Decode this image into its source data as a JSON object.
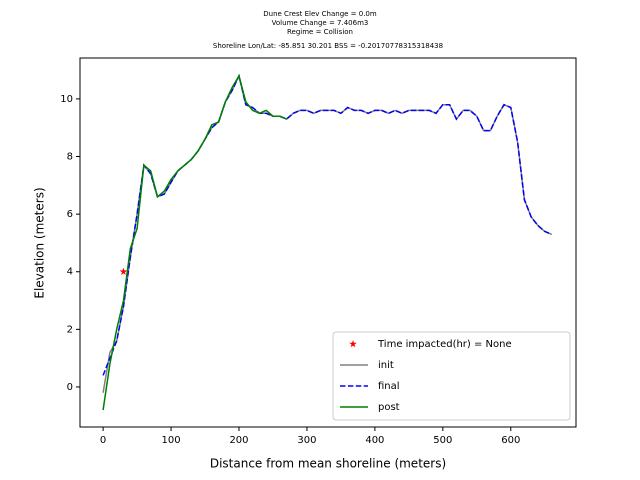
{
  "chart_data": {
    "type": "line",
    "title": [
      "Dune Crest Elev Change = 0.0m",
      "Volume Change = 7.406m3",
      "Regime = Collision",
      "Shoreline Lon/Lat: -85.851 30.201    BSS = -0.20170778315318438"
    ],
    "xlabel": "Distance from mean shoreline (meters)",
    "ylabel": "Elevation (meters)",
    "x": [
      0,
      10,
      20,
      30,
      40,
      50,
      60,
      70,
      80,
      90,
      100,
      110,
      120,
      130,
      140,
      150,
      160,
      170,
      180,
      190,
      200,
      210,
      220,
      230,
      240,
      250,
      260,
      270,
      280,
      290,
      300,
      310,
      320,
      330,
      340,
      350,
      360,
      370,
      380,
      390,
      400,
      410,
      420,
      430,
      440,
      450,
      460,
      470,
      480,
      490,
      500,
      510,
      520,
      530,
      540,
      550,
      560,
      570,
      580,
      590,
      600,
      610,
      620,
      630,
      640,
      650,
      660
    ],
    "series": [
      {
        "name": "init",
        "color": "#808080",
        "dash": false,
        "values": [
          -0.2,
          1.2,
          1.6,
          2.8,
          4.5,
          6.0,
          7.7,
          7.4,
          6.6,
          6.7,
          7.1,
          7.5,
          7.7,
          7.9,
          8.2,
          8.6,
          9.0,
          9.2,
          9.9,
          10.3,
          10.8,
          9.8,
          9.7,
          9.5,
          9.5,
          9.4,
          9.4,
          9.3,
          9.5,
          9.6,
          9.6,
          9.5,
          9.6,
          9.6,
          9.6,
          9.5,
          9.7,
          9.6,
          9.6,
          9.5,
          9.6,
          9.6,
          9.5,
          9.6,
          9.5,
          9.6,
          9.6,
          9.6,
          9.6,
          9.5,
          9.8,
          9.8,
          9.3,
          9.6,
          9.6,
          9.4,
          8.9,
          8.9,
          9.4,
          9.8,
          9.7,
          8.5,
          6.5,
          5.9,
          5.6,
          5.4,
          5.3
        ]
      },
      {
        "name": "final",
        "color": "#0000ff",
        "dash": true,
        "values": [
          0.4,
          1.0,
          1.6,
          2.8,
          4.5,
          6.0,
          7.7,
          7.4,
          6.6,
          6.7,
          7.1,
          7.5,
          7.7,
          7.9,
          8.2,
          8.6,
          9.0,
          9.2,
          9.9,
          10.3,
          10.8,
          9.8,
          9.7,
          9.5,
          9.5,
          9.4,
          9.4,
          9.3,
          9.5,
          9.6,
          9.6,
          9.5,
          9.6,
          9.6,
          9.6,
          9.5,
          9.7,
          9.6,
          9.6,
          9.5,
          9.6,
          9.6,
          9.5,
          9.6,
          9.5,
          9.6,
          9.6,
          9.6,
          9.6,
          9.5,
          9.8,
          9.8,
          9.3,
          9.6,
          9.6,
          9.4,
          8.9,
          8.9,
          9.4,
          9.8,
          9.7,
          8.5,
          6.5,
          5.9,
          5.6,
          5.4,
          5.3
        ]
      },
      {
        "name": "post",
        "color": "#008000",
        "dash": false,
        "values": [
          -0.8,
          0.8,
          2.0,
          3.0,
          4.8,
          5.5,
          7.7,
          7.5,
          6.6,
          6.8,
          7.2,
          7.5,
          7.7,
          7.9,
          8.2,
          8.6,
          9.1,
          9.2,
          9.9,
          10.4,
          10.8,
          9.9,
          9.6,
          9.5,
          9.6,
          9.4,
          9.4,
          9.3,
          null,
          null,
          null,
          null,
          null,
          null,
          null,
          null,
          null,
          null,
          null,
          null,
          null,
          null,
          null,
          null,
          null,
          null,
          null,
          null,
          null,
          null,
          null,
          null,
          null,
          null,
          null,
          null,
          null,
          null,
          null,
          null,
          null,
          null,
          null,
          null,
          null,
          null,
          null
        ]
      }
    ],
    "impact": {
      "name": "Time impacted(hr) = None",
      "x": 30,
      "y": 4,
      "color": "#ff0000"
    },
    "xlim": [
      -34,
      696
    ],
    "ylim": [
      -1.39,
      11.42
    ],
    "xticks": [
      0,
      100,
      200,
      300,
      400,
      500,
      600
    ],
    "yticks": [
      0,
      2,
      4,
      6,
      8,
      10
    ],
    "legend": "lower right"
  }
}
